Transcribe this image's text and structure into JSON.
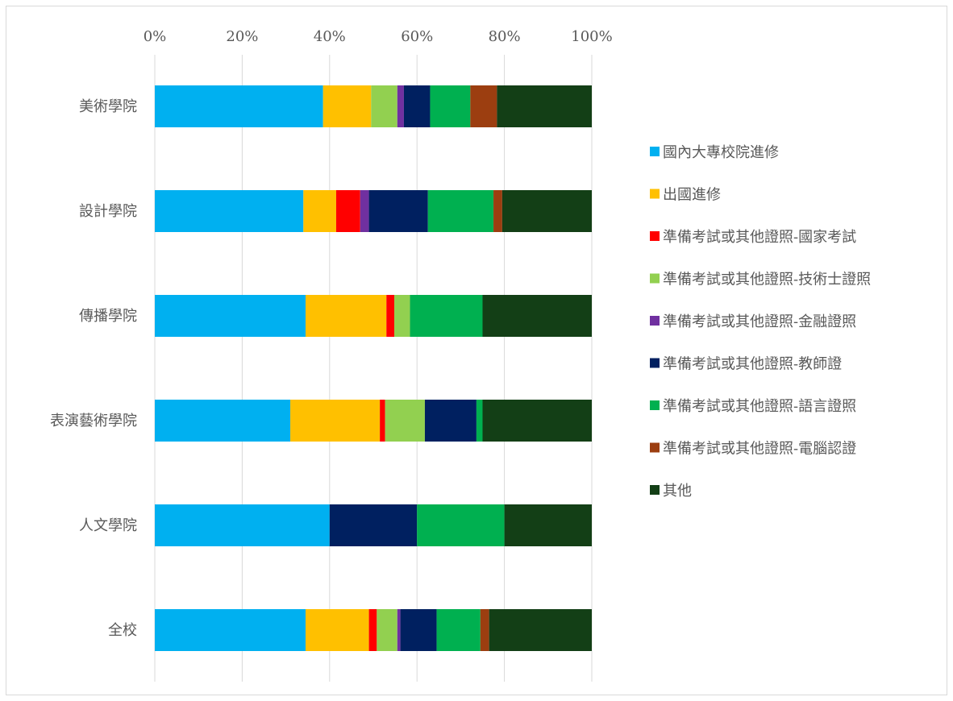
{
  "chart_data": {
    "type": "bar",
    "orientation": "horizontal",
    "stacked": "percent",
    "xlim": [
      0,
      100
    ],
    "x_ticks": [
      "0%",
      "20%",
      "40%",
      "60%",
      "80%",
      "100%"
    ],
    "grid": true,
    "legend_position": "right",
    "categories": [
      "美術學院",
      "設計學院",
      "傳播學院",
      "表演藝術學院",
      "人文學院",
      "全校"
    ],
    "series": [
      {
        "name": "國內大專校院進修",
        "color": "#00b0f0",
        "values": [
          38.5,
          34,
          34.5,
          31,
          40,
          34.5
        ]
      },
      {
        "name": "出國進修",
        "color": "#ffc000",
        "values": [
          11,
          7.5,
          18.5,
          20.5,
          0,
          14.5
        ]
      },
      {
        "name": "準備考試或其他證照-國家考試",
        "color": "#ff0000",
        "values": [
          0,
          5.5,
          1.8,
          1.2,
          0,
          1.8
        ]
      },
      {
        "name": "準備考試或其他證照-技術士證照",
        "color": "#92d050",
        "values": [
          6,
          0,
          3.6,
          9.1,
          0,
          4.7
        ]
      },
      {
        "name": "準備考試或其他證照-金融證照",
        "color": "#7030a0",
        "values": [
          1.5,
          2,
          0,
          0,
          0,
          0.7
        ]
      },
      {
        "name": "準備考試或其他證照-教師證",
        "color": "#002060",
        "values": [
          6,
          13.5,
          0,
          11.8,
          20,
          8.3
        ]
      },
      {
        "name": "準備考試或其他證照-語言證照",
        "color": "#00b050",
        "values": [
          9.2,
          15,
          16.6,
          1.4,
          20,
          10
        ]
      },
      {
        "name": "準備考試或其他證照-電腦認證",
        "color": "#9c3e10",
        "values": [
          6.1,
          2,
          0,
          0,
          0,
          2
        ]
      },
      {
        "name": "其他",
        "color": "#133f16",
        "values": [
          21.7,
          20.5,
          25,
          25,
          20,
          23.5
        ]
      }
    ]
  }
}
